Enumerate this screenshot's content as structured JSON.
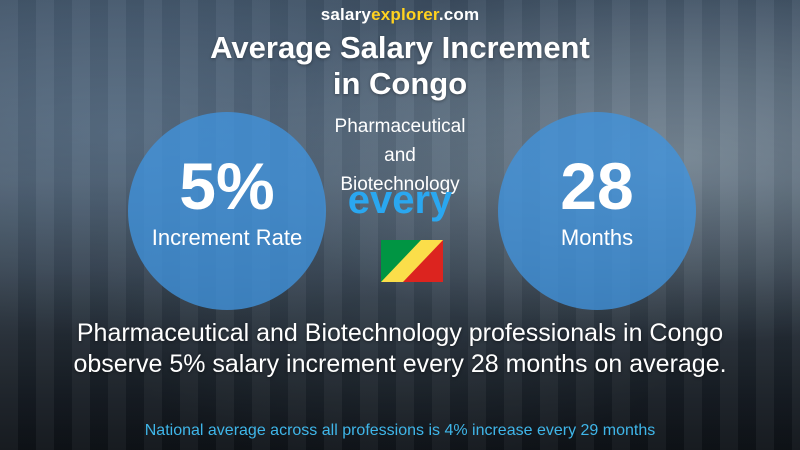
{
  "brand": {
    "part1": "salary",
    "part2": "explorer",
    "part3": ".com"
  },
  "title": {
    "line1": "Average Salary Increment",
    "line2": "in Congo"
  },
  "industry": {
    "line1": "Pharmaceutical",
    "line2": "and",
    "line3": "Biotechnology"
  },
  "increment": {
    "value": "5%",
    "label": "Increment Rate"
  },
  "every_label": "every",
  "period": {
    "value": "28",
    "label": "Months"
  },
  "flag": {
    "icon": "congo-flag-icon",
    "colors": [
      "#009543",
      "#fbde4a",
      "#dc241f"
    ]
  },
  "summary": {
    "line1": "Pharmaceutical and Biotechnology professionals in Congo",
    "line2": "observe 5% salary increment every 28 months on average."
  },
  "national": "National average across all professions is 4% increase every 29 months",
  "colors": {
    "circle": "#4094de",
    "every": "#2aa7f0",
    "national": "#3fb6e9",
    "brand_accent": "#ffd21f"
  }
}
